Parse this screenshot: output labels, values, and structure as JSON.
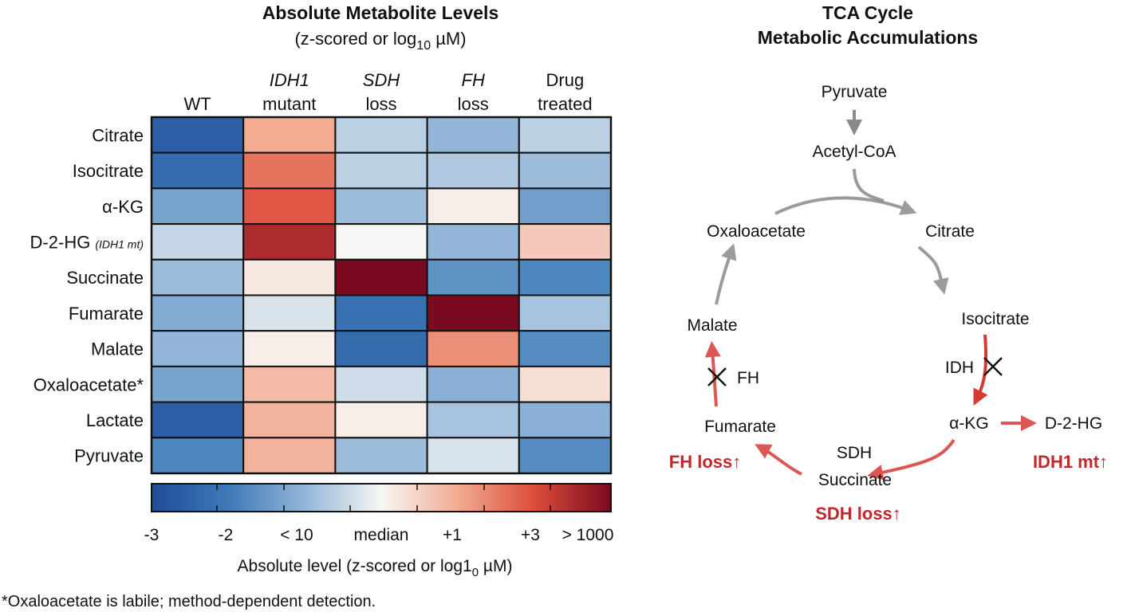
{
  "chart_data": {
    "type": "heatmap",
    "title": "Absolute Metabolite Levels",
    "subtitle_prefix": "(z-scored or log",
    "subtitle_sub": "10",
    "subtitle_suffix": " µM)",
    "columns": [
      {
        "line1": "",
        "line2": "WT",
        "italic_line1": false
      },
      {
        "line1": "IDH1",
        "line2": "mutant",
        "italic_line1": true
      },
      {
        "line1": "SDH",
        "line2": "loss",
        "italic_line1": true
      },
      {
        "line1": "FH",
        "line2": "loss",
        "italic_line1": true
      },
      {
        "line1": "Drug",
        "line2": "treated",
        "italic_line1": false
      }
    ],
    "rows": [
      "Citrate",
      "Isocitrate",
      "α-KG",
      "D-2-HG",
      "Succinate",
      "Fumarate",
      "Malate",
      "Oxaloacetate*",
      "Lactate",
      "Pyruvate"
    ],
    "row_note": {
      "row": 3,
      "text": "(IDH1 mt)"
    },
    "values": [
      [
        -2.6,
        1.0,
        -0.6,
        -1.0,
        -0.6
      ],
      [
        -2.3,
        1.6,
        -0.6,
        -0.7,
        -0.9
      ],
      [
        -1.3,
        1.9,
        -0.9,
        0.1,
        -1.4
      ],
      [
        -0.5,
        2.5,
        0.0,
        -1.0,
        0.6
      ],
      [
        -0.9,
        0.2,
        3.0,
        -1.6,
        -1.8
      ],
      [
        -1.2,
        -0.3,
        -2.2,
        3.0,
        -0.8
      ],
      [
        -1.0,
        0.1,
        -2.3,
        1.3,
        -1.7
      ],
      [
        -1.3,
        0.8,
        -0.4,
        -1.1,
        0.3
      ],
      [
        -2.6,
        0.9,
        0.1,
        -0.8,
        -1.1
      ],
      [
        -1.8,
        0.9,
        -0.9,
        -0.3,
        -1.7
      ]
    ],
    "scale": [
      -3,
      3
    ],
    "colorbar": {
      "tick_labels": [
        "-3",
        "-2",
        "< 10",
        "median",
        "+1",
        "+3",
        "> 1000"
      ],
      "label_prefix": "Absolute level (z-scored or log1",
      "label_sub": "0",
      "label_suffix": " µM)",
      "colors": [
        "#1f4b98",
        "#3d7ab8",
        "#93b6d8",
        "#f7f6f4",
        "#f3ab91",
        "#dd4d3b",
        "#7a0a1f"
      ]
    }
  },
  "footnote": "*Oxaloacetate is labile; method-dependent detection.",
  "diagram": {
    "title1": "TCA Cycle",
    "title2": "Metabolic Accumulations",
    "nodes": {
      "pyruvate": "Pyruvate",
      "acetyl_coa": "Acetyl-CoA",
      "oxaloacetate": "Oxaloacetate",
      "citrate": "Citrate",
      "isocitrate": "Isocitrate",
      "malate": "Malate",
      "idh": "IDH",
      "fh": "FH",
      "fumarate": "Fumarate",
      "akg": "α-KG",
      "d2hg": "D-2-HG",
      "sdh": "SDH",
      "succinate": "Succinate"
    },
    "annotations": {
      "fh_loss": "FH loss↑",
      "idh1_mt": "IDH1 mt↑",
      "sdh_loss": "SDH loss↑"
    },
    "colors": {
      "accent_red": "#c0282d",
      "arrow_grey": "#8a8a8a"
    }
  }
}
